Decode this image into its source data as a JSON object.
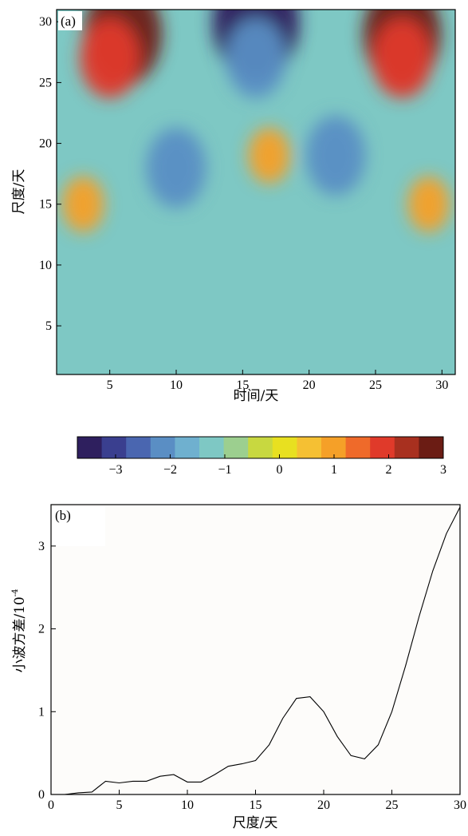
{
  "chart_data": [
    {
      "panel_label": "(a)",
      "type": "heatmap",
      "xlabel": "时间/天",
      "ylabel": "尺度/天",
      "xlim": [
        1,
        31
      ],
      "ylim": [
        1,
        31
      ],
      "xticks": [
        "5",
        "10",
        "15",
        "20",
        "25",
        "30"
      ],
      "yticks": [
        "5",
        "10",
        "15",
        "20",
        "25",
        "30"
      ],
      "colorbar": {
        "ticks": [
          "−3",
          "−2",
          "−1",
          "0",
          "1",
          "2",
          "3"
        ],
        "range": [
          -3.7,
          3
        ],
        "colors": [
          "#2e1f5e",
          "#3a3f8f",
          "#4a66b0",
          "#5a8ec4",
          "#6fb0cf",
          "#7ec8c4",
          "#9ccf8f",
          "#c8d840",
          "#e8e020",
          "#f5c033",
          "#f5a028",
          "#ef6a2a",
          "#e03a2a",
          "#a8301f",
          "#6b1c14"
        ]
      },
      "field_description": "wavelet coefficient over time (1-31 days) and scale (1-31 days)",
      "blobs": [
        {
          "x": 6,
          "y": 29,
          "value": 3
        },
        {
          "x": 5,
          "y": 27,
          "value": 2
        },
        {
          "x": 27,
          "y": 29,
          "value": 3
        },
        {
          "x": 27,
          "y": 27,
          "value": 2
        },
        {
          "x": 16,
          "y": 30,
          "value": -3.5
        },
        {
          "x": 16,
          "y": 27,
          "value": -2
        },
        {
          "x": 10,
          "y": 18,
          "value": -2
        },
        {
          "x": 22,
          "y": 19,
          "value": -2
        },
        {
          "x": 17,
          "y": 19,
          "value": 1
        },
        {
          "x": 3,
          "y": 15,
          "value": 1
        },
        {
          "x": 29,
          "y": 15,
          "value": 1
        }
      ]
    },
    {
      "panel_label": "(b)",
      "type": "line",
      "xlabel": "尺度/天",
      "ylabel": "小波方差/10",
      "ylabel_exponent": "-4",
      "xlim": [
        0,
        30
      ],
      "ylim": [
        0,
        3.5
      ],
      "xticks": [
        "0",
        "5",
        "10",
        "15",
        "20",
        "25",
        "30"
      ],
      "yticks": [
        "0",
        "1",
        "2",
        "3"
      ],
      "x": [
        1,
        2,
        3,
        4,
        5,
        6,
        7,
        8,
        9,
        10,
        11,
        12,
        13,
        14,
        15,
        16,
        17,
        18,
        19,
        20,
        21,
        22,
        23,
        24,
        25,
        26,
        27,
        28,
        29,
        30
      ],
      "series": [
        {
          "values": [
            0.0,
            0.02,
            0.03,
            0.16,
            0.14,
            0.16,
            0.16,
            0.22,
            0.24,
            0.15,
            0.15,
            0.24,
            0.34,
            0.37,
            0.41,
            0.6,
            0.92,
            1.16,
            1.18,
            1.0,
            0.7,
            0.47,
            0.43,
            0.6,
            1.0,
            1.55,
            2.15,
            2.7,
            3.15,
            3.47
          ]
        }
      ]
    }
  ]
}
